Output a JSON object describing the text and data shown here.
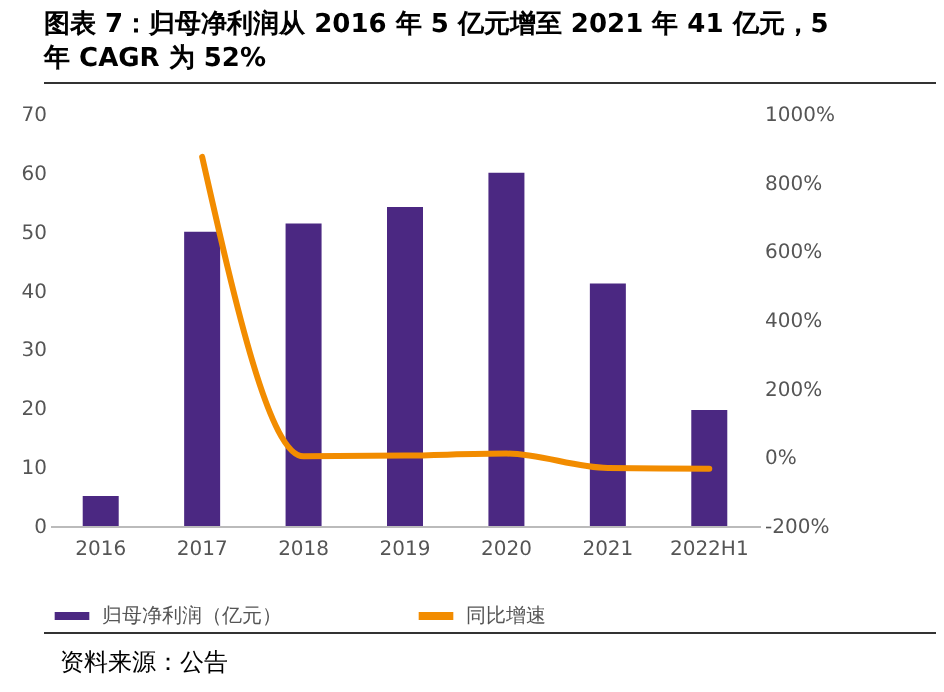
{
  "chart_data": {
    "type": "bar",
    "title": "图表 7：归母净利润从 2016 年 5 亿元增至 2021 年 41 亿元，5 年 CAGR 为 52%",
    "categories": [
      "2016",
      "2017",
      "2018",
      "2019",
      "2020",
      "2021",
      "2022H1"
    ],
    "series": [
      {
        "name": "归母净利润（亿元）",
        "color": "#4b2882",
        "values": [
          5.1,
          50.0,
          51.4,
          54.2,
          60.0,
          41.2,
          19.7
        ]
      },
      {
        "name": "同比增速",
        "type": "line",
        "axis": "y2",
        "color": "#f28c00",
        "values": [
          null,
          875,
          3,
          5,
          11,
          -31,
          -33
        ]
      }
    ],
    "ylim": [
      0,
      70
    ],
    "yticks": [
      0,
      10,
      20,
      30,
      40,
      50,
      60,
      70
    ],
    "y2lim": [
      -200,
      1000
    ],
    "y2ticks": [
      {
        "value": -200,
        "label": "-200%"
      },
      {
        "value": 0,
        "label": "0%"
      },
      {
        "value": 200,
        "label": "200%"
      },
      {
        "value": 400,
        "label": "400%"
      },
      {
        "value": 600,
        "label": "600%"
      },
      {
        "value": 800,
        "label": "800%"
      },
      {
        "value": 1000,
        "label": "1000%"
      }
    ],
    "legend": "bottom",
    "annotations": [
      "资料来源：公告"
    ]
  }
}
